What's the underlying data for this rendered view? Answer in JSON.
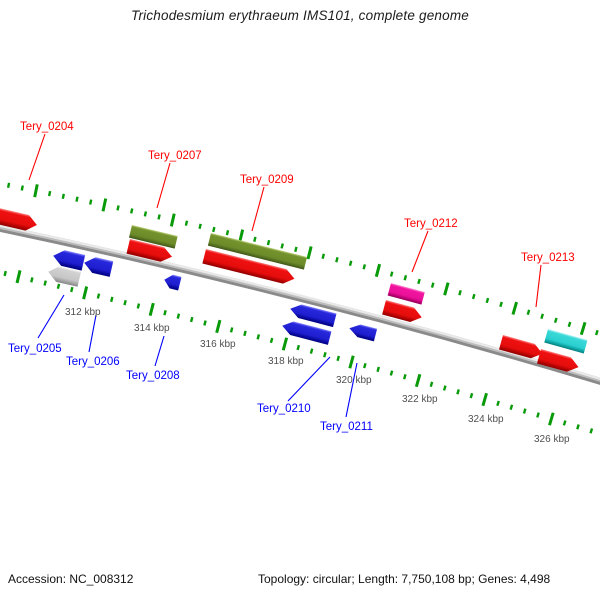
{
  "title": "Trichodesmium erythraeum IMS101, complete genome",
  "footer": {
    "accession": "Accession: NC_008312",
    "info": "Topology: circular; Length: 7,750,108 bp; Genes: 4,498"
  },
  "map": {
    "ruler_unit": "kbp",
    "ruler_labels": [
      "312 kbp",
      "314 kbp",
      "316 kbp",
      "318 kbp",
      "320 kbp",
      "322 kbp",
      "324 kbp",
      "326 kbp"
    ],
    "gene_labels": [
      {
        "label": "Tery_0204",
        "strand": "forward"
      },
      {
        "label": "Tery_0205",
        "strand": "reverse"
      },
      {
        "label": "Tery_0206",
        "strand": "reverse"
      },
      {
        "label": "Tery_0207",
        "strand": "forward"
      },
      {
        "label": "Tery_0208",
        "strand": "reverse"
      },
      {
        "label": "Tery_0209",
        "strand": "forward"
      },
      {
        "label": "Tery_0210",
        "strand": "reverse"
      },
      {
        "label": "Tery_0211",
        "strand": "reverse"
      },
      {
        "label": "Tery_0212",
        "strand": "forward"
      },
      {
        "label": "Tery_0213",
        "strand": "forward"
      }
    ],
    "colors": {
      "forward_label": "#fe0000",
      "reverse_label": "#0000fe",
      "tick": "#089a08",
      "backbone": "#bdbdbd",
      "feature_red": "#ee1111",
      "feature_blue": "#2424d8",
      "feature_olive": "#6f8f2a",
      "feature_pink": "#ef109a",
      "feature_cyan": "#2bcfcf",
      "feature_gray": "#c6c6c6"
    }
  }
}
